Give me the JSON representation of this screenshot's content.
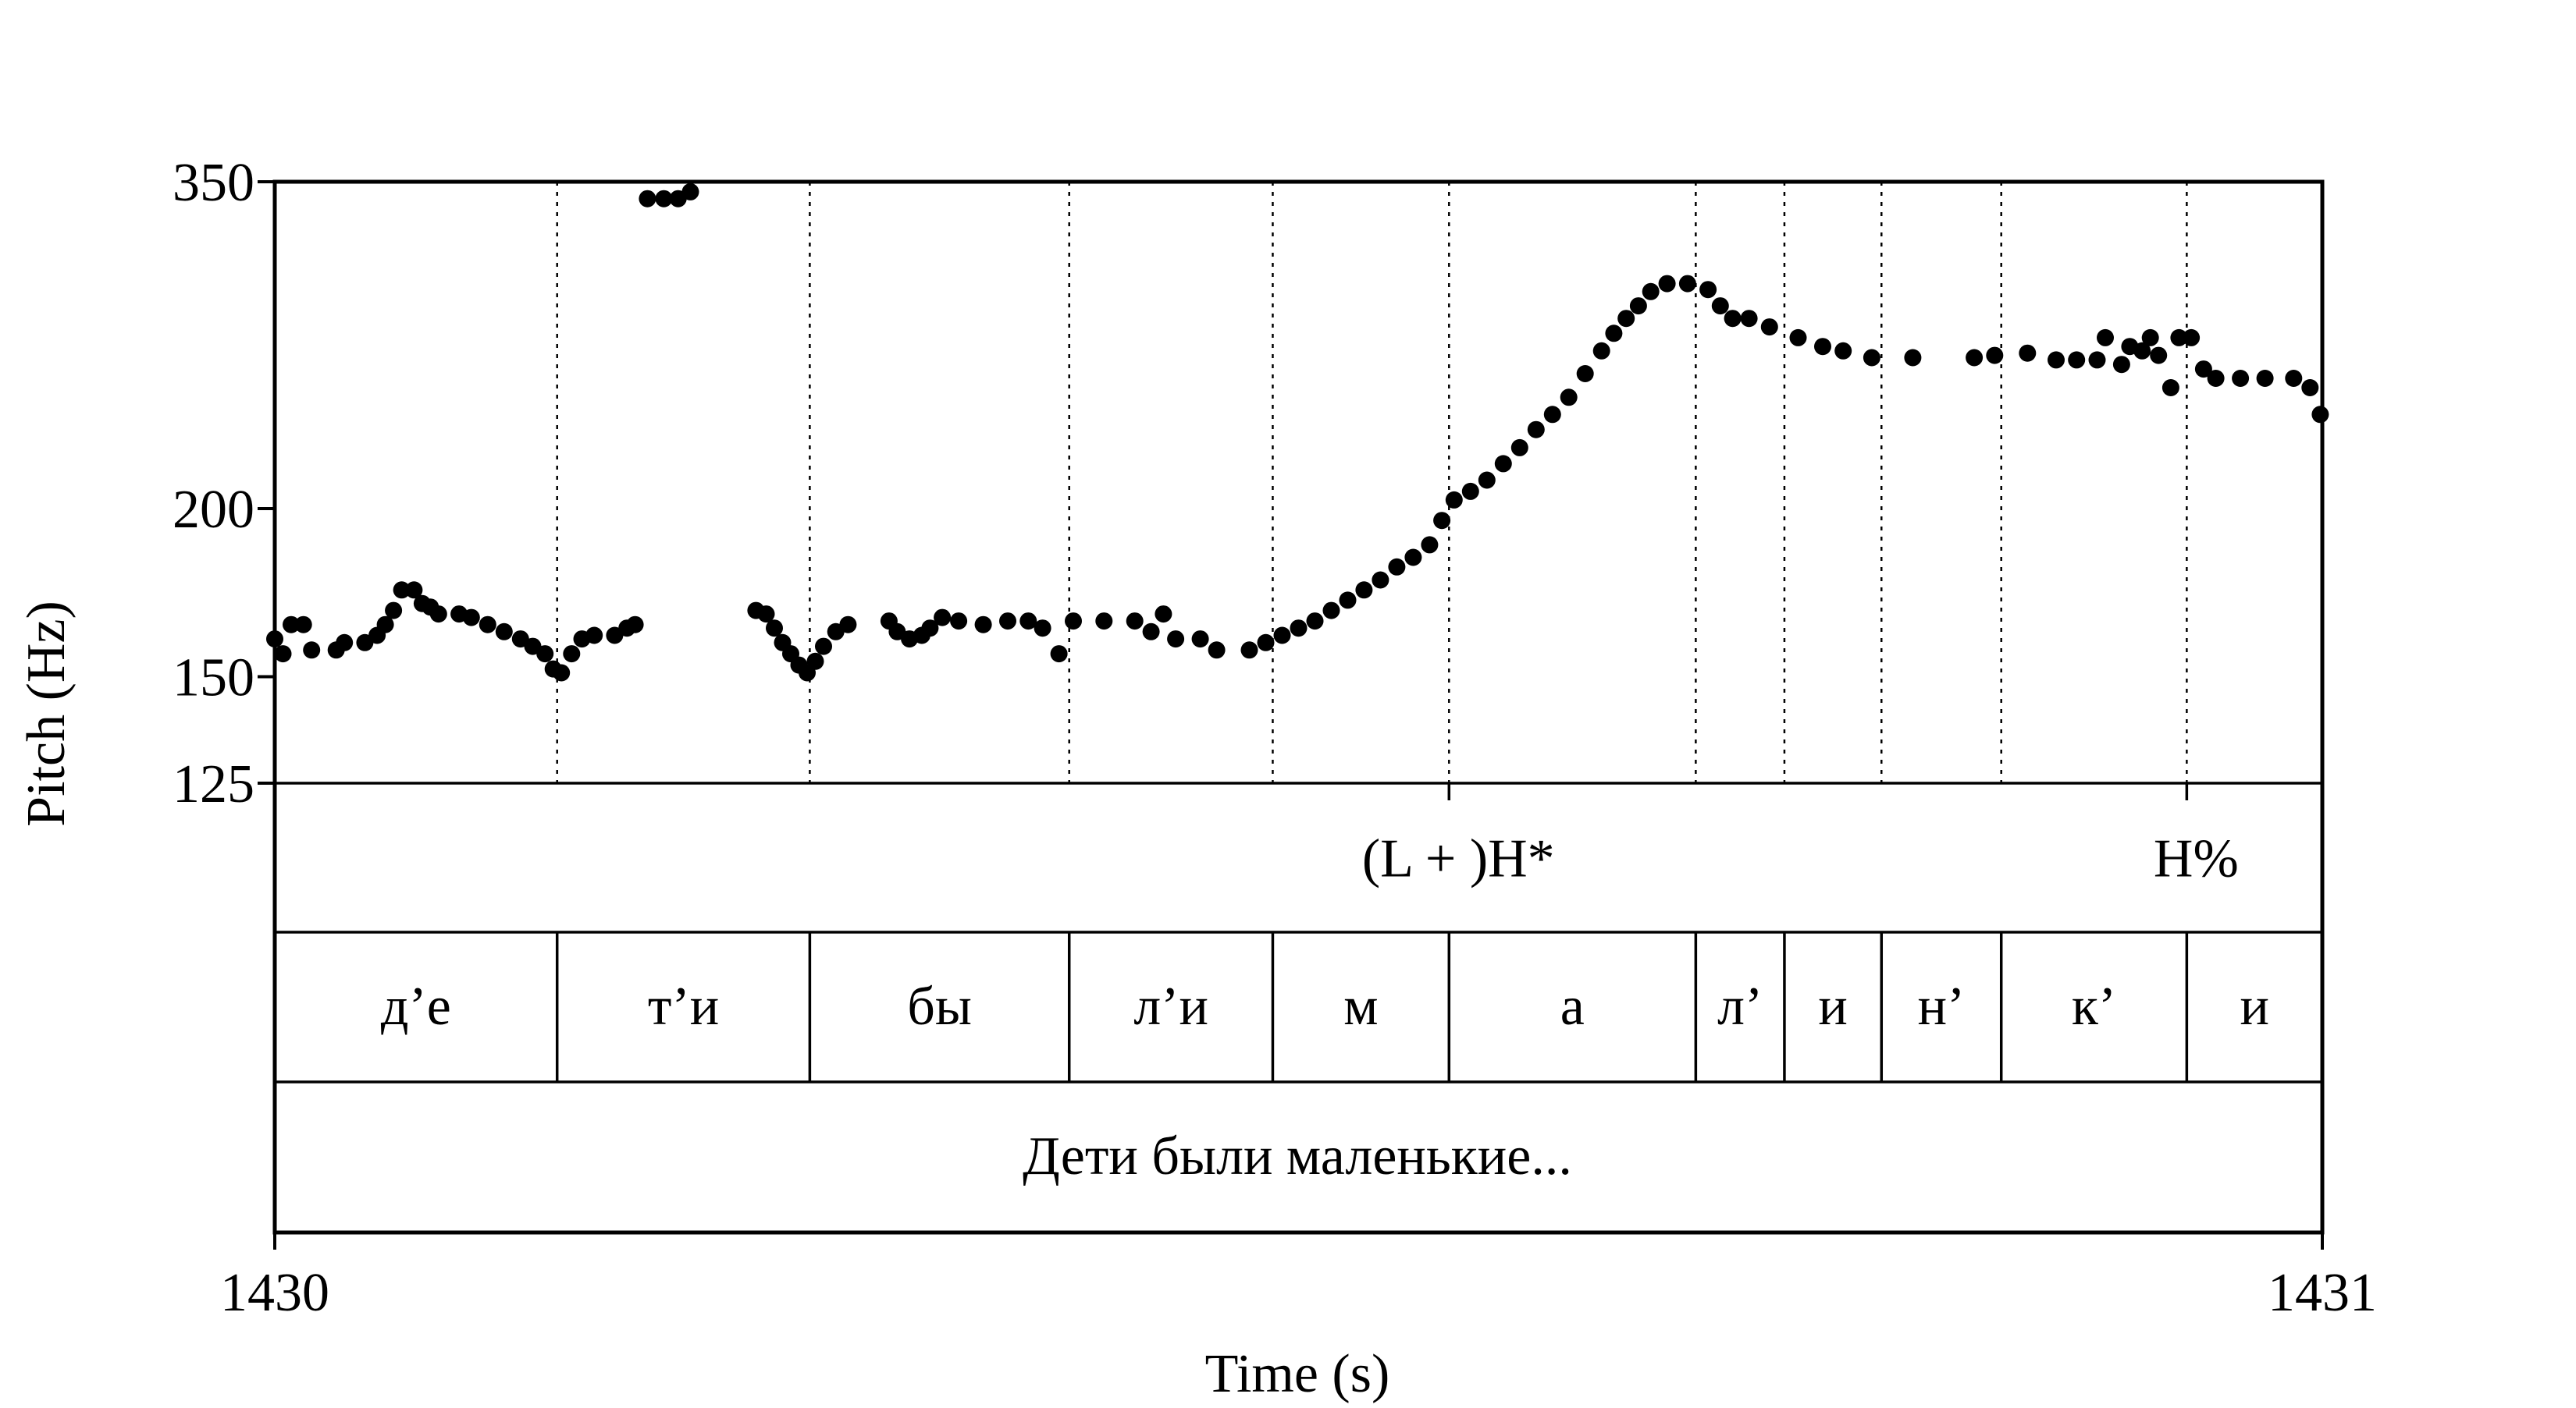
{
  "chart_data": {
    "type": "scatter",
    "xlabel": "Time (s)",
    "ylabel": "Pitch (Hz)",
    "xlim": [
      1430,
      1431
    ],
    "ylim": [
      125,
      350
    ],
    "y_scale": "log",
    "x_ticks": [
      "1430",
      "1431"
    ],
    "y_ticks": [
      350,
      200,
      150,
      125
    ],
    "y_tick_labels": [
      "350",
      "200",
      "150",
      "125"
    ],
    "marker_color": "#000000",
    "segment_boundaries": [
      1430.1379,
      1430.2613,
      1430.388,
      1430.4874,
      1430.5735,
      1430.694,
      1430.7373,
      1430.7847,
      1430.8432,
      1430.9338
    ],
    "segments": [
      {
        "label": "д’е",
        "start": 1430.0,
        "end": 1430.1379
      },
      {
        "label": "т’и",
        "start": 1430.1379,
        "end": 1430.2613
      },
      {
        "label": "бы",
        "start": 1430.2613,
        "end": 1430.388
      },
      {
        "label": "л’и",
        "start": 1430.388,
        "end": 1430.4874
      },
      {
        "label": "м",
        "start": 1430.4874,
        "end": 1430.5735
      },
      {
        "label": "а",
        "start": 1430.5735,
        "end": 1430.694
      },
      {
        "label": "л’",
        "start": 1430.694,
        "end": 1430.7373
      },
      {
        "label": "и",
        "start": 1430.7373,
        "end": 1430.7847
      },
      {
        "label": "н’",
        "start": 1430.7847,
        "end": 1430.8432
      },
      {
        "label": "к’",
        "start": 1430.8432,
        "end": 1430.9338
      },
      {
        "label": "и",
        "start": 1430.9338,
        "end": 1431.0
      }
    ],
    "tones": [
      {
        "label": "(L + )H*",
        "time": 1430.5735
      },
      {
        "label": "H%",
        "time": 1430.9338
      }
    ],
    "utterance": "Дети были маленькие...",
    "pitch_track": [
      [
        1430.0,
        160
      ],
      [
        1430.004,
        156
      ],
      [
        1430.008,
        164
      ],
      [
        1430.014,
        164
      ],
      [
        1430.018,
        157
      ],
      [
        1430.03,
        157
      ],
      [
        1430.034,
        159
      ],
      [
        1430.044,
        159
      ],
      [
        1430.05,
        161
      ],
      [
        1430.054,
        164
      ],
      [
        1430.058,
        168
      ],
      [
        1430.062,
        174
      ],
      [
        1430.068,
        174
      ],
      [
        1430.072,
        170
      ],
      [
        1430.076,
        169
      ],
      [
        1430.08,
        167
      ],
      [
        1430.09,
        167
      ],
      [
        1430.096,
        166
      ],
      [
        1430.104,
        164
      ],
      [
        1430.112,
        162
      ],
      [
        1430.12,
        160
      ],
      [
        1430.126,
        158
      ],
      [
        1430.132,
        156
      ],
      [
        1430.136,
        152
      ],
      [
        1430.14,
        151
      ],
      [
        1430.145,
        156
      ],
      [
        1430.15,
        160
      ],
      [
        1430.156,
        161
      ],
      [
        1430.166,
        161
      ],
      [
        1430.172,
        163
      ],
      [
        1430.176,
        164
      ],
      [
        1430.182,
        340
      ],
      [
        1430.19,
        340
      ],
      [
        1430.197,
        340
      ],
      [
        1430.203,
        344
      ],
      [
        1430.235,
        168
      ],
      [
        1430.24,
        167
      ],
      [
        1430.244,
        163
      ],
      [
        1430.248,
        159
      ],
      [
        1430.252,
        156
      ],
      [
        1430.256,
        153
      ],
      [
        1430.26,
        151
      ],
      [
        1430.264,
        154
      ],
      [
        1430.268,
        158
      ],
      [
        1430.274,
        162
      ],
      [
        1430.28,
        164
      ],
      [
        1430.3,
        165
      ],
      [
        1430.304,
        162
      ],
      [
        1430.31,
        160
      ],
      [
        1430.316,
        161
      ],
      [
        1430.32,
        163
      ],
      [
        1430.326,
        166
      ],
      [
        1430.334,
        165
      ],
      [
        1430.346,
        164
      ],
      [
        1430.358,
        165
      ],
      [
        1430.368,
        165
      ],
      [
        1430.375,
        163
      ],
      [
        1430.383,
        156
      ],
      [
        1430.39,
        165
      ],
      [
        1430.405,
        165
      ],
      [
        1430.42,
        165
      ],
      [
        1430.428,
        162
      ],
      [
        1430.434,
        167
      ],
      [
        1430.44,
        160
      ],
      [
        1430.452,
        160
      ],
      [
        1430.46,
        157
      ],
      [
        1430.476,
        157
      ],
      [
        1430.484,
        159
      ],
      [
        1430.492,
        161
      ],
      [
        1430.5,
        163
      ],
      [
        1430.508,
        165
      ],
      [
        1430.516,
        168
      ],
      [
        1430.524,
        171
      ],
      [
        1430.532,
        174
      ],
      [
        1430.54,
        177
      ],
      [
        1430.548,
        181
      ],
      [
        1430.556,
        184
      ],
      [
        1430.564,
        188
      ],
      [
        1430.57,
        196
      ],
      [
        1430.576,
        203
      ],
      [
        1430.584,
        206
      ],
      [
        1430.592,
        210
      ],
      [
        1430.6,
        216
      ],
      [
        1430.608,
        222
      ],
      [
        1430.616,
        229
      ],
      [
        1430.624,
        235
      ],
      [
        1430.632,
        242
      ],
      [
        1430.64,
        252
      ],
      [
        1430.648,
        262
      ],
      [
        1430.654,
        270
      ],
      [
        1430.66,
        277
      ],
      [
        1430.666,
        283
      ],
      [
        1430.672,
        290
      ],
      [
        1430.68,
        294
      ],
      [
        1430.69,
        294
      ],
      [
        1430.7,
        291
      ],
      [
        1430.706,
        283
      ],
      [
        1430.712,
        277
      ],
      [
        1430.72,
        277
      ],
      [
        1430.73,
        273
      ],
      [
        1430.744,
        268
      ],
      [
        1430.756,
        264
      ],
      [
        1430.766,
        262
      ],
      [
        1430.78,
        259
      ],
      [
        1430.8,
        259
      ],
      [
        1430.83,
        259
      ],
      [
        1430.84,
        260
      ],
      [
        1430.856,
        261
      ],
      [
        1430.87,
        258
      ],
      [
        1430.88,
        258
      ],
      [
        1430.89,
        258
      ],
      [
        1430.894,
        268
      ],
      [
        1430.902,
        256
      ],
      [
        1430.906,
        264
      ],
      [
        1430.912,
        262
      ],
      [
        1430.916,
        268
      ],
      [
        1430.92,
        260
      ],
      [
        1430.926,
        246
      ],
      [
        1430.93,
        268
      ],
      [
        1430.936,
        268
      ],
      [
        1430.942,
        254
      ],
      [
        1430.948,
        250
      ],
      [
        1430.96,
        250
      ],
      [
        1430.972,
        250
      ],
      [
        1430.986,
        250
      ],
      [
        1430.994,
        246
      ],
      [
        1430.999,
        235
      ]
    ]
  }
}
